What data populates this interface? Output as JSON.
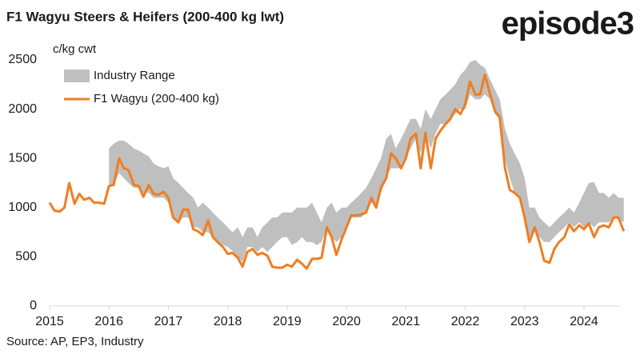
{
  "chart_data": {
    "type": "line",
    "title": "F1 Wagyu Steers & Heifers (200-400 kg lwt)",
    "logo": "episode3",
    "y_label": "c/kg cwt",
    "source": "Source: AP, EP3, Industry",
    "xlim": [
      2015,
      2024.6
    ],
    "xticks": [
      2015,
      2016,
      2017,
      2018,
      2019,
      2020,
      2021,
      2022,
      2023,
      2024
    ],
    "ylim": [
      0,
      2500
    ],
    "yticks": [
      0,
      500,
      1000,
      1500,
      2000,
      2500
    ],
    "grid": false,
    "legend": "upper left",
    "series": [
      {
        "name": "Industry Range",
        "color": "#bfbfbf",
        "kind": "band",
        "x": [
          2016,
          2016.08,
          2016.17,
          2016.25,
          2016.33,
          2016.42,
          2016.5,
          2016.58,
          2016.67,
          2016.75,
          2016.83,
          2016.92,
          2017,
          2017.08,
          2017.17,
          2017.25,
          2017.33,
          2017.42,
          2017.5,
          2017.58,
          2017.67,
          2017.75,
          2017.83,
          2017.92,
          2018,
          2018.08,
          2018.17,
          2018.25,
          2018.33,
          2018.42,
          2018.5,
          2018.58,
          2018.67,
          2018.75,
          2018.83,
          2018.92,
          2019,
          2019.08,
          2019.17,
          2019.25,
          2019.33,
          2019.42,
          2019.5,
          2019.58,
          2019.67,
          2019.75,
          2019.83,
          2019.92,
          2020,
          2020.08,
          2020.17,
          2020.25,
          2020.33,
          2020.42,
          2020.5,
          2020.58,
          2020.67,
          2020.75,
          2020.83,
          2020.92,
          2021,
          2021.08,
          2021.17,
          2021.25,
          2021.33,
          2021.42,
          2021.5,
          2021.58,
          2021.67,
          2021.75,
          2021.83,
          2021.92,
          2022,
          2022.08,
          2022.17,
          2022.25,
          2022.33,
          2022.42,
          2022.5,
          2022.58,
          2022.67,
          2022.75,
          2022.83,
          2022.92,
          2023,
          2023.08,
          2023.17,
          2023.25,
          2023.33,
          2023.42,
          2023.5,
          2023.58,
          2023.67,
          2023.75,
          2023.83,
          2023.92,
          2024,
          2024.08,
          2024.17,
          2024.25,
          2024.33,
          2024.42,
          2024.5,
          2024.58,
          2024.67
        ],
        "upper": [
          1600,
          1650,
          1680,
          1680,
          1650,
          1600,
          1580,
          1550,
          1520,
          1450,
          1420,
          1400,
          1420,
          1300,
          1250,
          1200,
          1150,
          1100,
          1000,
          1050,
          1000,
          950,
          900,
          850,
          800,
          750,
          800,
          700,
          800,
          800,
          700,
          800,
          850,
          900,
          900,
          950,
          950,
          950,
          1000,
          1000,
          1000,
          1050,
          950,
          850,
          1000,
          1050,
          950,
          1000,
          1000,
          1050,
          1100,
          1150,
          1200,
          1300,
          1400,
          1500,
          1700,
          1750,
          1600,
          1700,
          1800,
          1900,
          1900,
          1800,
          2000,
          1900,
          2000,
          2100,
          2150,
          2200,
          2250,
          2350,
          2400,
          2480,
          2500,
          2450,
          2420,
          2300,
          2200,
          2100,
          1800,
          1650,
          1550,
          1450,
          1300,
          1000,
          1000,
          900,
          850,
          800,
          850,
          900,
          950,
          1000,
          950,
          1050,
          1150,
          1250,
          1260,
          1150,
          1150,
          1100,
          1150,
          1100,
          1100
        ],
        "lower": [
          1200,
          1230,
          1350,
          1300,
          1250,
          1200,
          1200,
          1150,
          1150,
          1100,
          1100,
          1100,
          1050,
          900,
          850,
          900,
          900,
          800,
          800,
          750,
          750,
          700,
          650,
          620,
          600,
          560,
          500,
          450,
          600,
          600,
          550,
          600,
          550,
          600,
          650,
          700,
          700,
          620,
          650,
          700,
          650,
          650,
          620,
          650,
          800,
          700,
          650,
          700,
          800,
          900,
          900,
          900,
          950,
          1050,
          1000,
          1150,
          1300,
          1400,
          1400,
          1400,
          1500,
          1600,
          1700,
          1550,
          1750,
          1600,
          1750,
          1850,
          1850,
          1900,
          1950,
          2000,
          2000,
          2150,
          2100,
          2100,
          2150,
          2100,
          1950,
          1900,
          1500,
          1300,
          1150,
          1100,
          900,
          700,
          800,
          700,
          650,
          650,
          700,
          750,
          800,
          850,
          800,
          850,
          800,
          850,
          800,
          850,
          850,
          850,
          900,
          880,
          850
        ]
      },
      {
        "name": "F1 Wagyu (200-400 kg)",
        "color": "#f07d21",
        "kind": "line",
        "x": [
          2015,
          2015.08,
          2015.17,
          2015.25,
          2015.33,
          2015.42,
          2015.5,
          2015.58,
          2015.67,
          2015.75,
          2015.83,
          2015.92,
          2016,
          2016.08,
          2016.17,
          2016.25,
          2016.33,
          2016.42,
          2016.5,
          2016.58,
          2016.67,
          2016.75,
          2016.83,
          2016.92,
          2017,
          2017.08,
          2017.17,
          2017.25,
          2017.33,
          2017.42,
          2017.5,
          2017.58,
          2017.67,
          2017.75,
          2017.83,
          2017.92,
          2018,
          2018.08,
          2018.17,
          2018.25,
          2018.33,
          2018.42,
          2018.5,
          2018.58,
          2018.67,
          2018.75,
          2018.83,
          2018.92,
          2019,
          2019.08,
          2019.17,
          2019.25,
          2019.33,
          2019.42,
          2019.5,
          2019.58,
          2019.67,
          2019.75,
          2019.83,
          2019.92,
          2020,
          2020.08,
          2020.17,
          2020.25,
          2020.33,
          2020.42,
          2020.5,
          2020.58,
          2020.67,
          2020.75,
          2020.83,
          2020.92,
          2021,
          2021.08,
          2021.17,
          2021.25,
          2021.33,
          2021.42,
          2021.5,
          2021.58,
          2021.67,
          2021.75,
          2021.83,
          2021.92,
          2022,
          2022.08,
          2022.17,
          2022.25,
          2022.33,
          2022.42,
          2022.5,
          2022.58,
          2022.67,
          2022.75,
          2022.83,
          2022.92,
          2023,
          2023.08,
          2023.17,
          2023.25,
          2023.33,
          2023.42,
          2023.5,
          2023.58,
          2023.67,
          2023.75,
          2023.83,
          2023.92,
          2024,
          2024.08,
          2024.17,
          2024.25,
          2024.33,
          2024.42,
          2024.5,
          2024.58,
          2024.67
        ],
        "values": [
          1050,
          970,
          960,
          1000,
          1250,
          1040,
          1140,
          1080,
          1100,
          1050,
          1050,
          1040,
          1220,
          1230,
          1500,
          1400,
          1380,
          1230,
          1220,
          1110,
          1230,
          1140,
          1130,
          1160,
          1100,
          900,
          850,
          980,
          980,
          780,
          760,
          720,
          870,
          700,
          650,
          600,
          530,
          540,
          490,
          400,
          550,
          580,
          520,
          540,
          510,
          400,
          390,
          390,
          420,
          400,
          470,
          430,
          380,
          480,
          480,
          490,
          800,
          700,
          520,
          680,
          800,
          920,
          920,
          930,
          950,
          1100,
          1000,
          1200,
          1300,
          1550,
          1500,
          1400,
          1500,
          1700,
          1750,
          1400,
          1760,
          1400,
          1700,
          1780,
          1850,
          1900,
          2000,
          1950,
          2050,
          2280,
          2150,
          2150,
          2350,
          2150,
          1980,
          1920,
          1400,
          1180,
          1150,
          1100,
          900,
          650,
          800,
          650,
          460,
          440,
          580,
          650,
          700,
          830,
          760,
          820,
          780,
          840,
          700,
          800,
          820,
          800,
          900,
          900,
          760
        ]
      }
    ]
  }
}
